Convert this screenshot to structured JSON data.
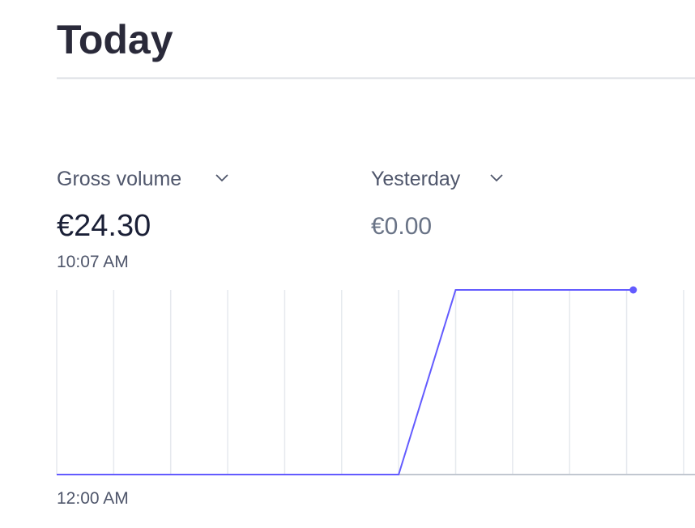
{
  "header": {
    "title": "Today"
  },
  "metrics": [
    {
      "label": "Gross volume",
      "value": "€24.30",
      "time": "10:07 AM"
    },
    {
      "label": "Yesterday",
      "value": "€0.00"
    }
  ],
  "chart_data": {
    "type": "line",
    "x": [
      0,
      60,
      120,
      180,
      240,
      300,
      360,
      420,
      480,
      540,
      600,
      607
    ],
    "values": [
      0,
      0,
      0,
      0,
      0,
      0,
      0,
      24.3,
      24.3,
      24.3,
      24.3,
      24.3
    ],
    "color": "#635bff",
    "xlim": [
      0,
      672
    ],
    "ylim": [
      0,
      24.3
    ],
    "xgrid": [
      0,
      60,
      120,
      180,
      240,
      300,
      360,
      420,
      480,
      540,
      600,
      660
    ],
    "x_start_label": "12:00 AM"
  }
}
